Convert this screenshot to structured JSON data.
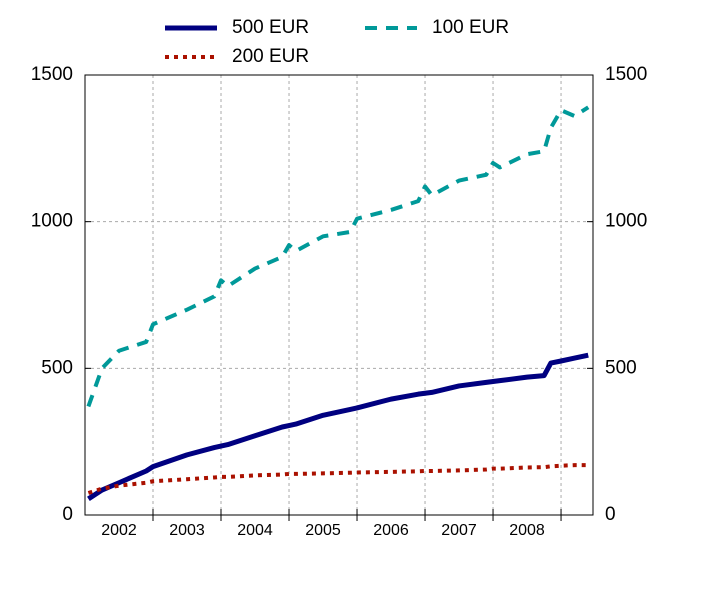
{
  "chart_data": {
    "type": "line",
    "x": [
      2002.05,
      2002.25,
      2002.5,
      2002.9,
      2003.0,
      2003.5,
      2003.9,
      2004.0,
      2004.1,
      2004.5,
      2004.9,
      2005.0,
      2005.1,
      2005.5,
      2005.9,
      2006.0,
      2006.5,
      2006.9,
      2007.0,
      2007.1,
      2007.5,
      2007.9,
      2008.0,
      2008.1,
      2008.5,
      2008.75,
      2008.85,
      2009.0,
      2009.2,
      2009.4
    ],
    "series": [
      {
        "name": "500 EUR",
        "color": "#000080",
        "style": "solid",
        "values": [
          55,
          85,
          110,
          150,
          165,
          205,
          230,
          235,
          240,
          270,
          300,
          305,
          310,
          340,
          360,
          365,
          395,
          412,
          415,
          418,
          440,
          452,
          455,
          458,
          470,
          475,
          518,
          525,
          535,
          545
        ]
      },
      {
        "name": "100 EUR",
        "color": "#009999",
        "style": "dashed",
        "values": [
          370,
          500,
          560,
          590,
          650,
          700,
          745,
          800,
          780,
          840,
          880,
          920,
          900,
          950,
          965,
          1010,
          1040,
          1070,
          1120,
          1090,
          1140,
          1160,
          1200,
          1185,
          1230,
          1240,
          1320,
          1380,
          1360,
          1390
        ]
      },
      {
        "name": "200 EUR",
        "color": "#aa1100",
        "style": "dotted",
        "values": [
          75,
          90,
          100,
          110,
          115,
          122,
          128,
          130,
          130,
          135,
          138,
          140,
          140,
          142,
          144,
          145,
          147,
          149,
          150,
          150,
          152,
          155,
          158,
          158,
          162,
          163,
          166,
          168,
          170,
          170
        ]
      }
    ],
    "xlim": [
      2002,
      2009.47
    ],
    "xticks": [
      {
        "value": 2002.5,
        "label": "2002"
      },
      {
        "value": 2003.5,
        "label": "2003"
      },
      {
        "value": 2004.5,
        "label": "2004"
      },
      {
        "value": 2005.5,
        "label": "2005"
      },
      {
        "value": 2006.5,
        "label": "2006"
      },
      {
        "value": 2007.5,
        "label": "2007"
      },
      {
        "value": 2008.5,
        "label": "2008"
      }
    ],
    "xgrid": [
      2003,
      2004,
      2005,
      2006,
      2007,
      2008,
      2009
    ],
    "ylim": [
      0,
      1500
    ],
    "yticks": [
      0,
      500,
      1000,
      1500
    ],
    "y2lim": [
      0,
      1500
    ],
    "y2ticks": [
      0,
      500,
      1000,
      1500
    ],
    "grid": true
  }
}
